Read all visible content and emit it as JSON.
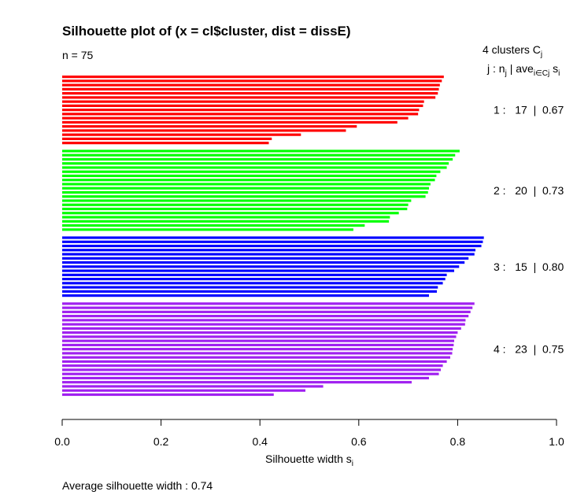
{
  "chart_data": {
    "type": "bar",
    "orientation": "horizontal",
    "title": "Silhouette plot of (x = cl$cluster, dist = dissE)",
    "n_label": "n = 75",
    "header": {
      "line1_text": "4  clusters  C",
      "line1_sub": "j",
      "line2_a": "j :  n",
      "line2_sub_j": "j",
      "line2_b": " | ave",
      "line2_sub_set": "i∈Cj",
      "line2_c": "  s",
      "line2_sub_i": "i"
    },
    "xlabel_main": "Silhouette width s",
    "xlabel_sub": "i",
    "xlim": [
      0,
      1
    ],
    "xticks": [
      "0.0",
      "0.2",
      "0.4",
      "0.6",
      "0.8",
      "1.0"
    ],
    "footer": "Average silhouette width :  0.74",
    "clusters": [
      {
        "id": 1,
        "n": 17,
        "ave": "0.67",
        "color": "#ff0000",
        "label": "1 :   17  |  0.67",
        "widths": [
          0.772,
          0.768,
          0.764,
          0.762,
          0.76,
          0.755,
          0.732,
          0.73,
          0.722,
          0.72,
          0.7,
          0.678,
          0.596,
          0.574,
          0.483,
          0.424,
          0.418
        ]
      },
      {
        "id": 2,
        "n": 20,
        "ave": "0.73",
        "color": "#00ff00",
        "label": "2 :   20  |  0.73",
        "widths": [
          0.804,
          0.795,
          0.79,
          0.782,
          0.778,
          0.765,
          0.757,
          0.754,
          0.745,
          0.742,
          0.74,
          0.735,
          0.706,
          0.7,
          0.698,
          0.681,
          0.663,
          0.661,
          0.612,
          0.589
        ]
      },
      {
        "id": 3,
        "n": 15,
        "ave": "0.80",
        "color": "#0000ff",
        "label": "3 :   15  |  0.80",
        "widths": [
          0.853,
          0.851,
          0.848,
          0.836,
          0.834,
          0.822,
          0.814,
          0.803,
          0.793,
          0.778,
          0.775,
          0.77,
          0.76,
          0.758,
          0.742
        ]
      },
      {
        "id": 4,
        "n": 23,
        "ave": "0.75",
        "color": "#a020f0",
        "label": "4 :   23  |  0.75",
        "widths": [
          0.834,
          0.83,
          0.826,
          0.822,
          0.816,
          0.815,
          0.807,
          0.8,
          0.797,
          0.793,
          0.792,
          0.79,
          0.789,
          0.785,
          0.778,
          0.77,
          0.766,
          0.762,
          0.742,
          0.707,
          0.528,
          0.492,
          0.428
        ]
      }
    ]
  }
}
